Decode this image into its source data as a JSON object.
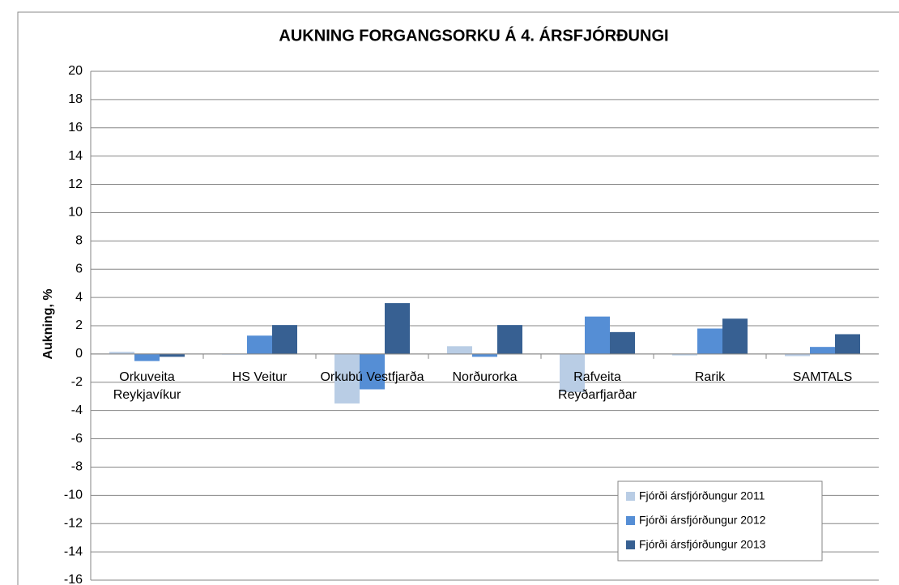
{
  "chart_data": {
    "type": "bar",
    "title": "AUKNING FORGANGSORKU Á 4. ÁRSFJÓRÐUNGI",
    "y_label": "Aukning, %",
    "categories": [
      "Orkuveita Reykjavíkur",
      "HS Veitur",
      "Orkubú Vestfjarða",
      "Norðurorka",
      "Rafveita Reyðarfjarðar",
      "Rarik",
      "SAMTALS"
    ],
    "series": [
      {
        "name": "Fjórði ársfjórðungur 2011",
        "color": "#b9cde5",
        "values": [
          0.15,
          -0.05,
          -3.5,
          0.55,
          -2.7,
          -0.1,
          -0.15
        ]
      },
      {
        "name": "Fjórði ársfjórðungur 2012",
        "color": "#558ed5",
        "values": [
          -0.5,
          1.3,
          -2.5,
          -0.2,
          2.65,
          1.8,
          0.5
        ]
      },
      {
        "name": "Fjórði ársfjórðungur 2013",
        "color": "#376092",
        "values": [
          -0.2,
          2.05,
          3.6,
          2.05,
          1.55,
          2.5,
          1.4
        ]
      }
    ],
    "ylim": [
      -16,
      20
    ],
    "yticks": [
      -16,
      -14,
      -12,
      -10,
      -8,
      -6,
      -4,
      -2,
      0,
      2,
      4,
      6,
      8,
      10,
      12,
      14,
      16,
      18,
      20
    ],
    "grid": true,
    "legend": "lower right"
  }
}
